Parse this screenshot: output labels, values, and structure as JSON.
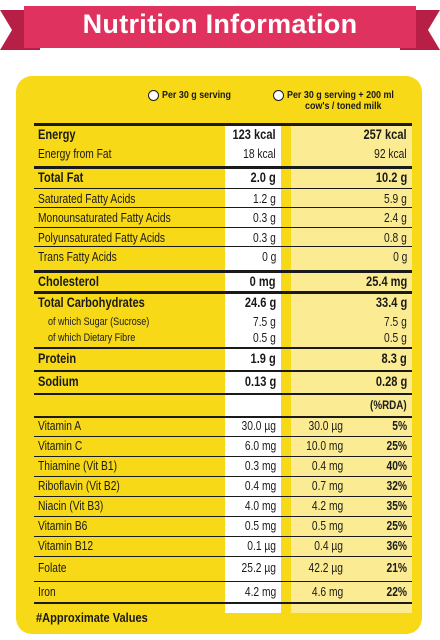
{
  "banner": {
    "title": "Nutrition Information",
    "color": "#e0325f"
  },
  "panel": {
    "color": "#f7d917",
    "col2_color": "#fbeb93"
  },
  "columns": {
    "per_serving": "Per 30 g serving",
    "with_milk_line1": "Per 30 g serving + 200 ml",
    "with_milk_line2": "cow's / toned milk"
  },
  "rows": [
    {
      "label": "Energy",
      "v1": "123 kcal",
      "v2": "257 kcal",
      "style": "bold"
    },
    {
      "label": "Energy from Fat",
      "v1": "18 kcal",
      "v2": "92 kcal",
      "style": "normal"
    },
    {
      "label": "Total Fat",
      "v1": "2.0 g",
      "v2": "10.2 g",
      "style": "bold"
    },
    {
      "label": "Saturated Fatty Acids",
      "v1": "1.2 g",
      "v2": "5.9 g",
      "style": "normal"
    },
    {
      "label": "Monounsaturated Fatty Acids",
      "v1": "0.3 g",
      "v2": "2.4 g",
      "style": "normal"
    },
    {
      "label": "Polyunsaturated Fatty Acids",
      "v1": "0.3 g",
      "v2": "0.8 g",
      "style": "normal"
    },
    {
      "label": "Trans Fatty Acids",
      "v1": "0 g",
      "v2": "0 g",
      "style": "normal"
    },
    {
      "label": "Cholesterol",
      "v1": "0 mg",
      "v2": "25.4 mg",
      "style": "bold"
    },
    {
      "label": "Total Carbohydrates",
      "v1": "24.6 g",
      "v2": "33.4 g",
      "style": "bold"
    },
    {
      "label": "of which Sugar (Sucrose)",
      "v1": "7.5 g",
      "v2": "7.5 g",
      "style": "sub"
    },
    {
      "label": "of which Dietary Fibre",
      "v1": "0.5 g",
      "v2": "0.5 g",
      "style": "sub"
    },
    {
      "label": "Protein",
      "v1": "1.9 g",
      "v2": "8.3 g",
      "style": "bold"
    },
    {
      "label": "Sodium",
      "v1": "0.13 g",
      "v2": "0.28 g",
      "style": "bold"
    }
  ],
  "rda_header": "(%RDA)",
  "vitamins": [
    {
      "label": "Vitamin A",
      "v1": "30.0 µg",
      "v2": "30.0 µg",
      "rda": "5%"
    },
    {
      "label": "Vitamin C",
      "v1": "6.0 mg",
      "v2": "10.0 mg",
      "rda": "25%"
    },
    {
      "label": "Thiamine (Vit B1)",
      "v1": "0.3 mg",
      "v2": "0.4 mg",
      "rda": "40%"
    },
    {
      "label": "Riboflavin (Vit B2)",
      "v1": "0.4 mg",
      "v2": "0.7 mg",
      "rda": "32%"
    },
    {
      "label": "Niacin (Vit B3)",
      "v1": "4.0 mg",
      "v2": "4.2 mg",
      "rda": "35%"
    },
    {
      "label": "Vitamin B6",
      "v1": "0.5 mg",
      "v2": "0.5 mg",
      "rda": "25%"
    },
    {
      "label": "Vitamin B12",
      "v1": "0.1 µg",
      "v2": "0.4 µg",
      "rda": "36%"
    },
    {
      "label": "Folate",
      "v1": "25.2 µg",
      "v2": "42.2 µg",
      "rda": "21%"
    },
    {
      "label": "Iron",
      "v1": "4.2 mg",
      "v2": "4.6 mg",
      "rda": "22%"
    }
  ],
  "footnote": "#Approximate Values"
}
